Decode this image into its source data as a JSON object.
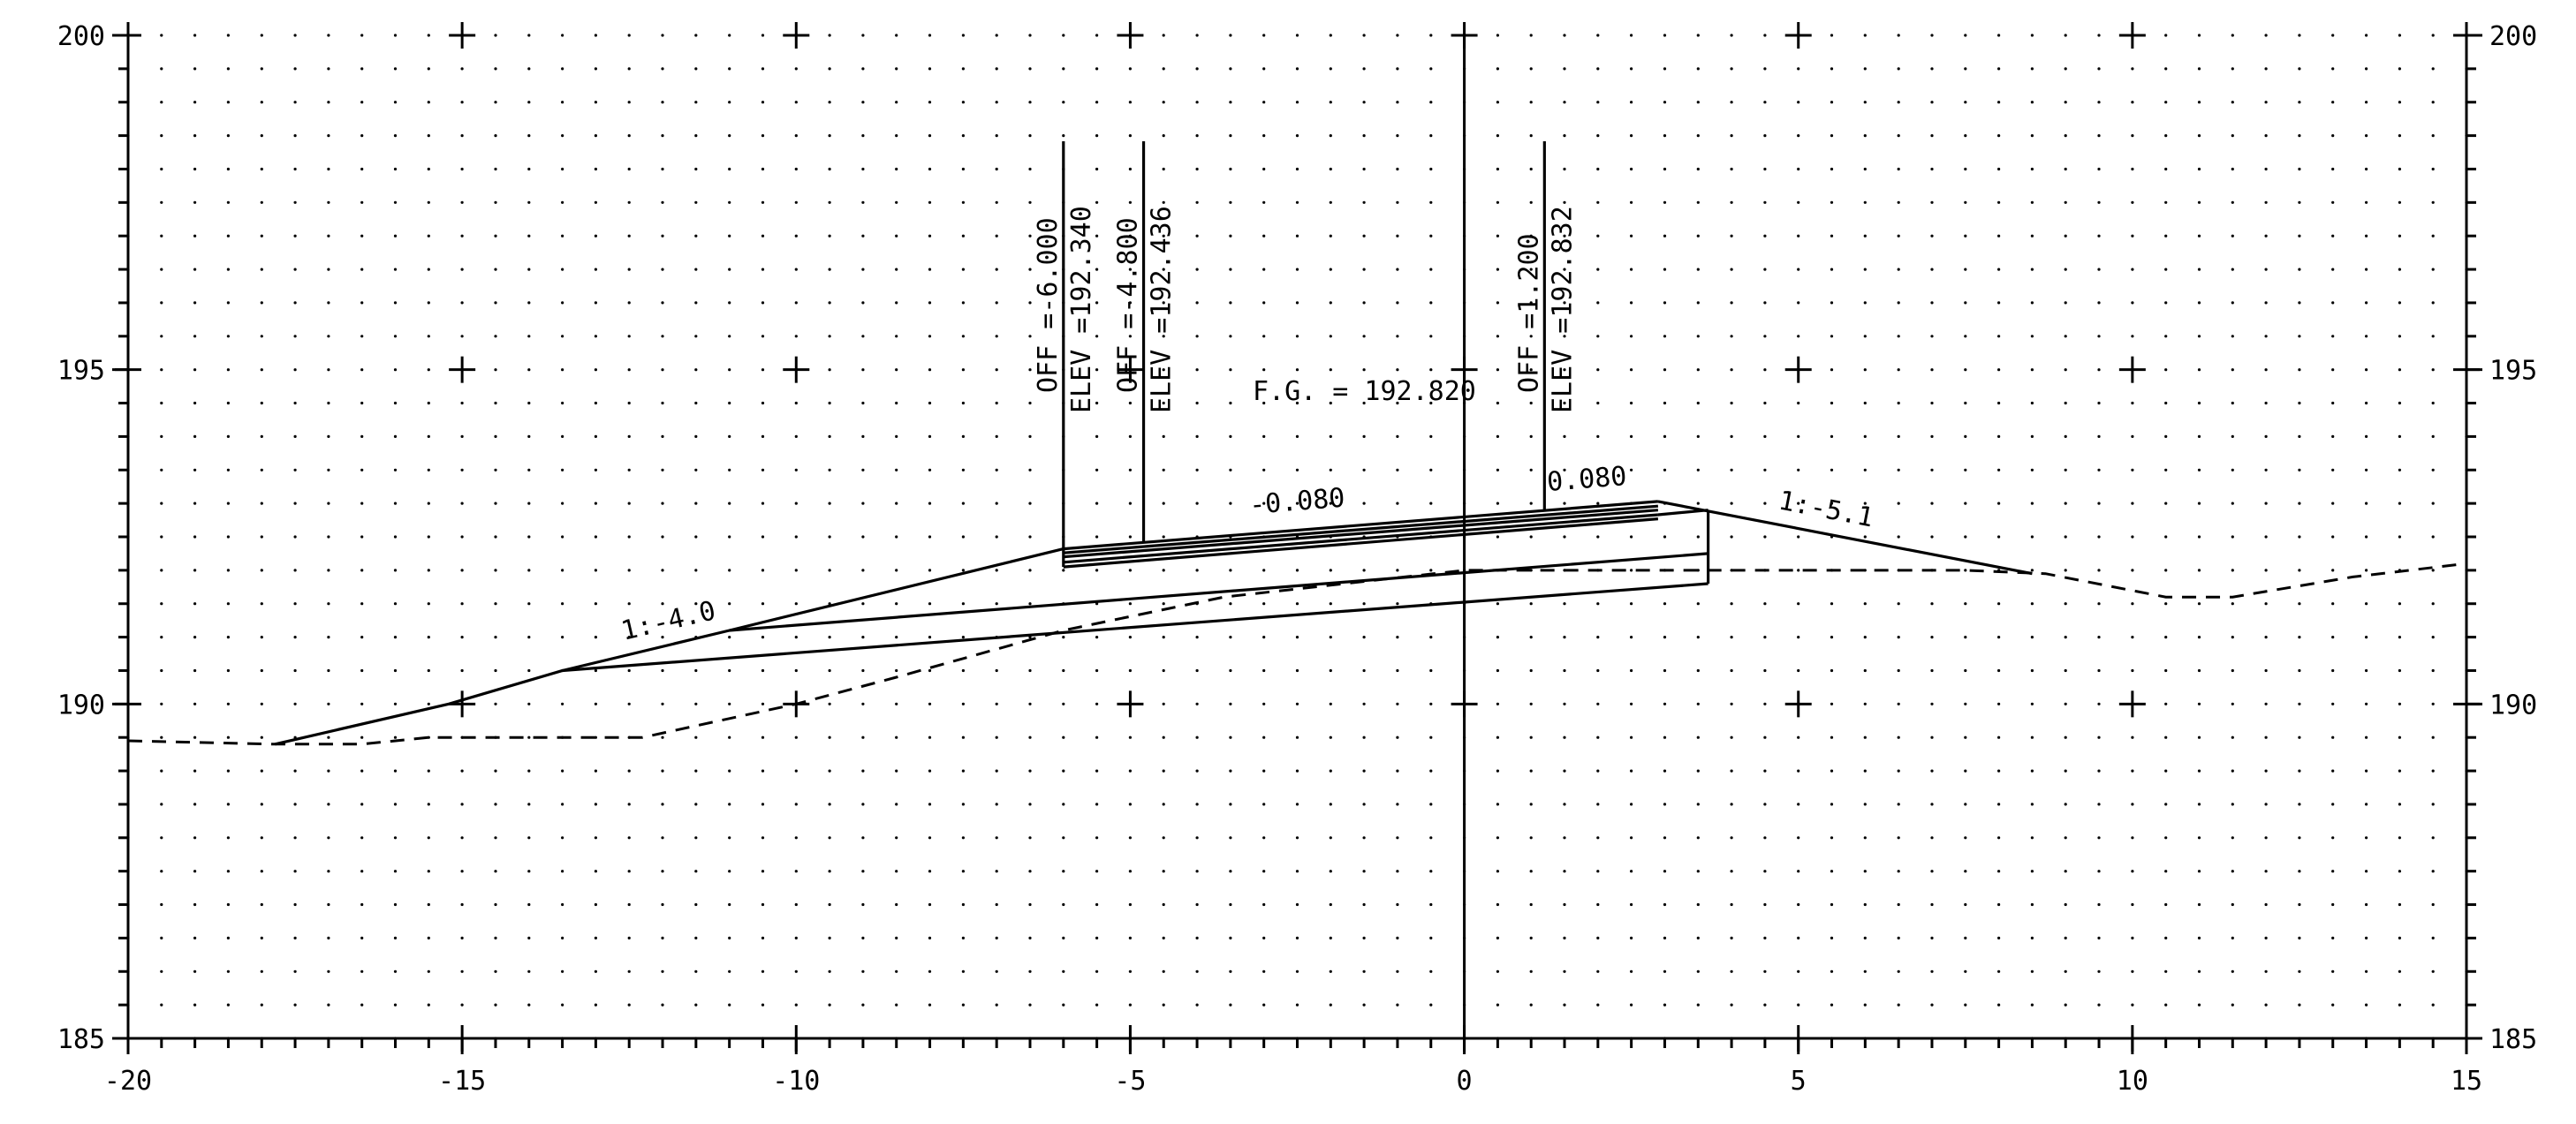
{
  "chart_data": {
    "type": "cross-section",
    "xlim": [
      -20,
      15
    ],
    "ylim": [
      185,
      200
    ],
    "x_ticks": [
      "-20",
      "-15",
      "-10",
      "-5",
      "0",
      "5",
      "10",
      "15"
    ],
    "y_ticks": [
      "185",
      "190",
      "195",
      "200"
    ],
    "x_tick_values": [
      -20,
      -15,
      -10,
      -5,
      0,
      5,
      10,
      15
    ],
    "y_tick_values": [
      185,
      190,
      195,
      200
    ],
    "grid": "dotted",
    "existing_ground": [
      [
        -20,
        189.45
      ],
      [
        -17.8,
        189.4
      ],
      [
        -16.5,
        189.4
      ],
      [
        -15.5,
        189.5
      ],
      [
        -12.3,
        189.5
      ],
      [
        -10,
        190
      ],
      [
        -8.5,
        190.4
      ],
      [
        -6,
        191.1
      ],
      [
        -3.6,
        191.6
      ],
      [
        0,
        192.0
      ],
      [
        3.5,
        192.0
      ],
      [
        7.5,
        192.0
      ],
      [
        8.7,
        191.95
      ],
      [
        10.5,
        191.6
      ],
      [
        11.5,
        191.6
      ],
      [
        13.3,
        191.9
      ],
      [
        15,
        192.1
      ]
    ],
    "finished_grade": {
      "left_slope": [
        [
          -17.8,
          189.4
        ],
        [
          -15.2,
          190.0
        ],
        [
          -13.5,
          190.5
        ],
        [
          -11.0,
          191.1
        ],
        [
          -6.0,
          192.32
        ]
      ],
      "pavement_layers": [
        [
          [
            -6.0,
            192.32
          ],
          [
            2.9,
            193.03
          ]
        ],
        [
          [
            -6.0,
            192.26
          ],
          [
            2.9,
            192.96
          ]
        ],
        [
          [
            -6.0,
            192.2
          ],
          [
            2.9,
            192.9
          ]
        ],
        [
          [
            -6.0,
            192.12
          ],
          [
            2.9,
            192.83
          ]
        ],
        [
          [
            -6.0,
            192.05
          ],
          [
            2.9,
            192.77
          ]
        ]
      ],
      "right_slope": [
        [
          2.9,
          193.03
        ],
        [
          8.5,
          191.95
        ]
      ],
      "pavement_left_edge": [
        [
          -6.0,
          192.05
        ],
        [
          -6.0,
          192.32
        ]
      ],
      "subgrade_right_edge": [
        [
          3.65,
          191.8
        ],
        [
          3.65,
          192.9
        ]
      ],
      "subgrade_lines": [
        [
          [
            -11.0,
            191.1
          ],
          [
            3.65,
            192.25
          ]
        ],
        [
          [
            -13.5,
            190.5
          ],
          [
            3.65,
            191.8
          ]
        ]
      ]
    },
    "centerline_x": 0,
    "annotations": [
      {
        "x": -6.0,
        "offset_text": "OFF =-6.000",
        "elev_text": "ELEV =192.340"
      },
      {
        "x": -4.8,
        "offset_text": "OFF =-4.800",
        "elev_text": "ELEV =192.436"
      },
      {
        "x": 1.2,
        "offset_text": "OFF =1.200",
        "elev_text": "ELEV =192.832"
      }
    ],
    "labels": {
      "fg": "F.G. = 192.820",
      "left_cross_slope": "-0.080",
      "right_cross_slope": "0.080",
      "left_side_slope": "1:-4.0",
      "right_side_slope": "1:-5.1"
    }
  }
}
